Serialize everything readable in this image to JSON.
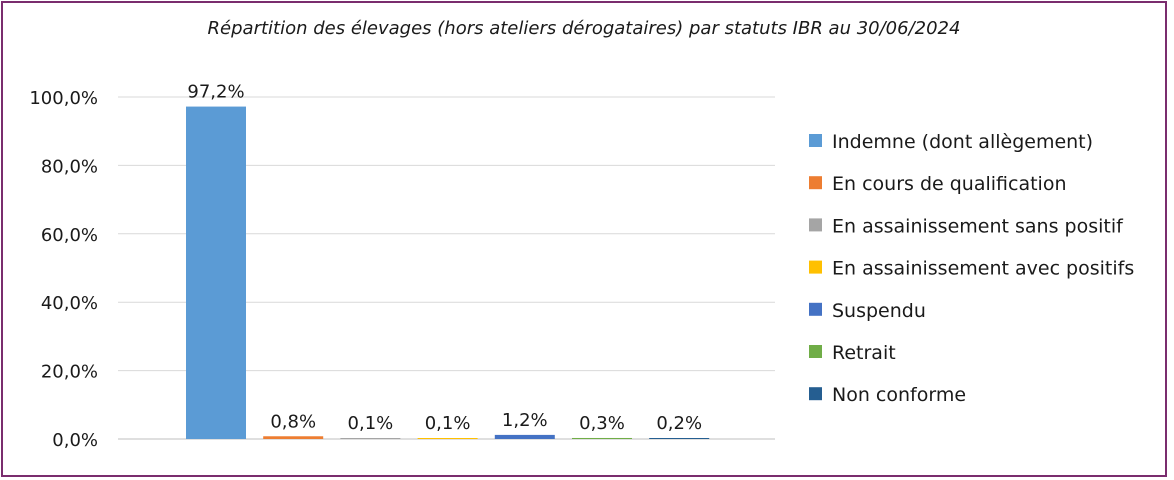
{
  "chart_data": {
    "type": "bar",
    "title": "Répartition des élevages (hors ateliers dérogataires) par statuts IBR au 30/06/2024",
    "xlabel": "",
    "ylabel": "",
    "ylim": [
      0,
      100
    ],
    "y_ticks": [
      "0,0%",
      "20,0%",
      "40,0%",
      "60,0%",
      "80,0%",
      "100,0%"
    ],
    "y_tick_values": [
      0,
      20,
      40,
      60,
      80,
      100
    ],
    "grid": true,
    "legend_position": "right",
    "categories": [
      "Indemne (dont allègement)",
      "En cours de qualification",
      "En assainissement sans positif",
      "En assainissement avec positifs",
      "Suspendu",
      "Retrait",
      "Non conforme"
    ],
    "values": [
      97.2,
      0.8,
      0.1,
      0.1,
      1.2,
      0.3,
      0.2
    ],
    "data_labels": [
      "97,2%",
      "0,8%",
      "0,1%",
      "0,1%",
      "1,2%",
      "0,3%",
      "0,2%"
    ],
    "colors": [
      "#5b9bd5",
      "#ed7d31",
      "#a5a5a5",
      "#ffc000",
      "#4472c4",
      "#70ad47",
      "#255e91"
    ]
  },
  "frame_color": "#7a2d6e"
}
